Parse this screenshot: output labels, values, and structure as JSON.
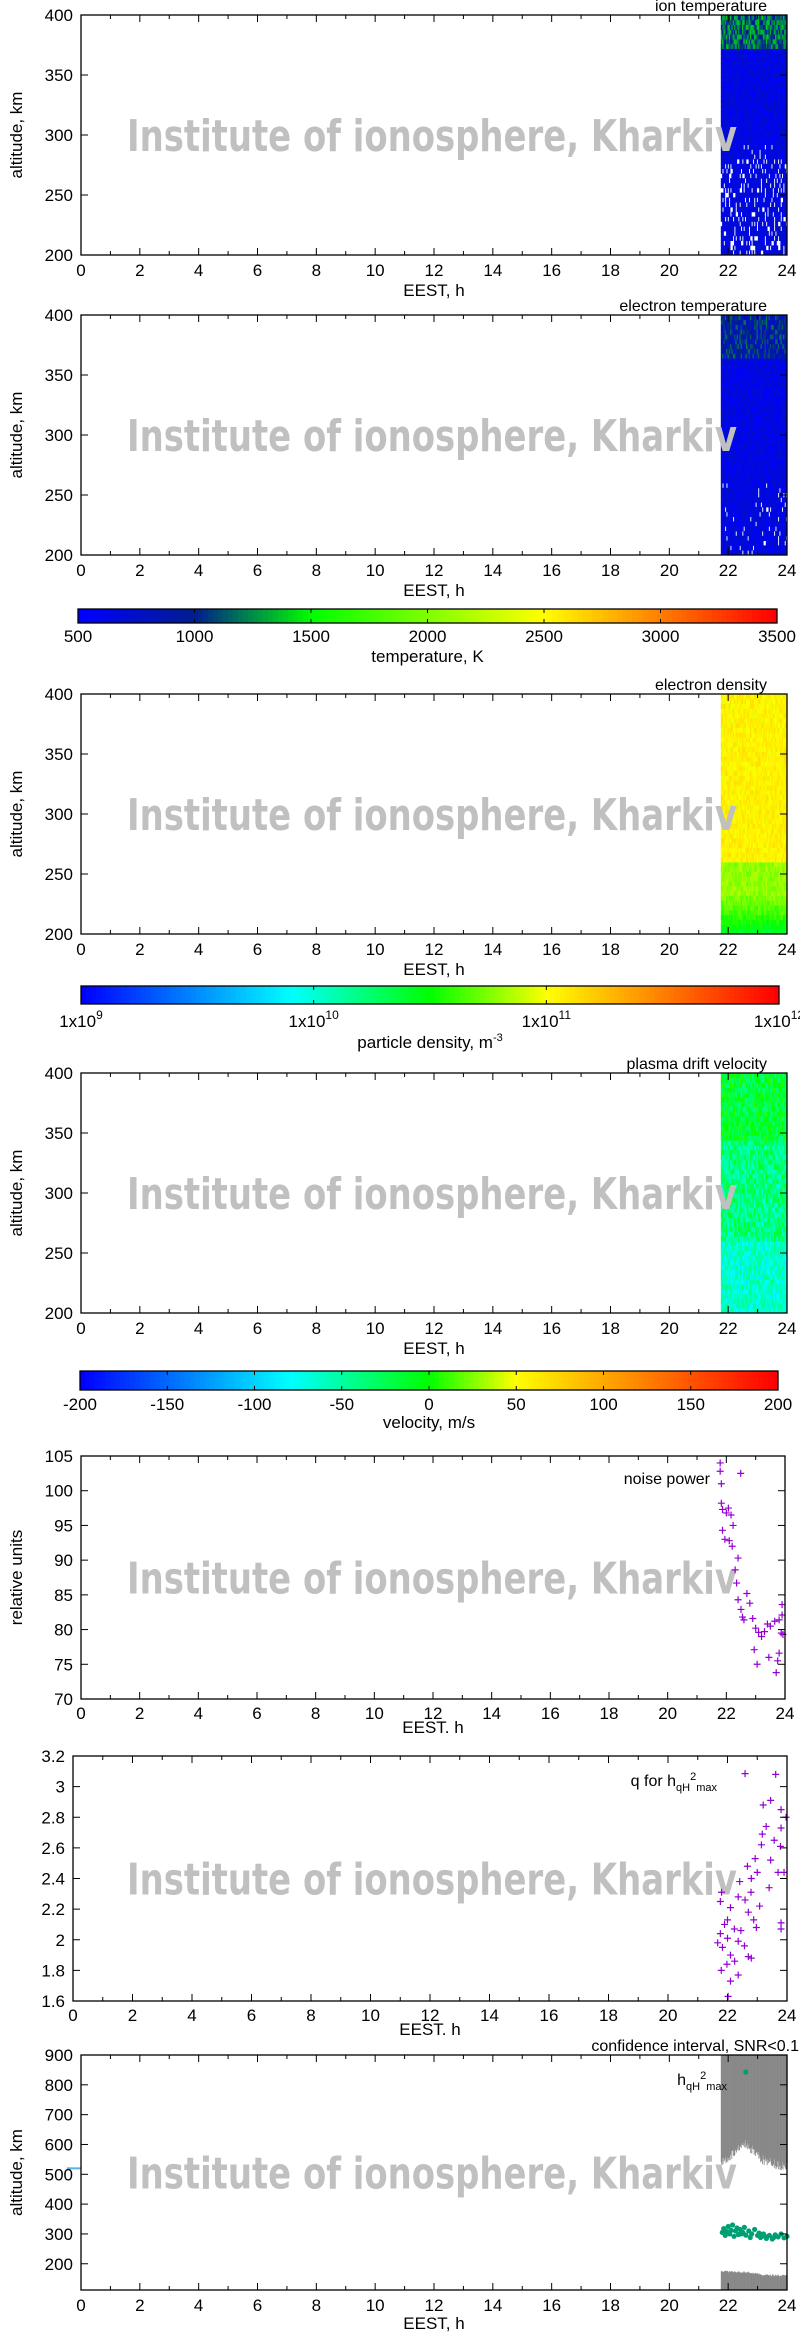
{
  "watermark": "Institute of ionosphere, Kharkiv",
  "chart_data": [
    {
      "type": "heatmap",
      "title": "ion temperature",
      "xlabel": "EEST, h",
      "ylabel": "altitude, km",
      "xlim": [
        0,
        24
      ],
      "ylim": [
        200,
        400
      ],
      "xticks": [
        "0",
        "2",
        "4",
        "6",
        "8",
        "10",
        "12",
        "14",
        "16",
        "18",
        "20",
        "22",
        "24"
      ],
      "yticks": [
        "200",
        "250",
        "300",
        "350",
        "400"
      ],
      "data_x_range": [
        21.75,
        24
      ],
      "data_y_range": [
        200,
        400
      ],
      "colorbar": 0,
      "value_range_estimate": [
        500,
        1300
      ],
      "notes_visible": "mostly blue (~500-800 K), greener near 400 km, gaps below 280 km"
    },
    {
      "type": "heatmap",
      "title": "electron temperature",
      "xlabel": "EEST, h",
      "ylabel": "altitude, km",
      "xlim": [
        0,
        24
      ],
      "ylim": [
        200,
        400
      ],
      "xticks": [
        "0",
        "2",
        "4",
        "6",
        "8",
        "10",
        "12",
        "14",
        "16",
        "18",
        "20",
        "22",
        "24"
      ],
      "yticks": [
        "200",
        "250",
        "300",
        "350",
        "400"
      ],
      "data_x_range": [
        21.75,
        24
      ],
      "data_y_range": [
        200,
        400
      ],
      "colorbar": 0,
      "value_range_estimate": [
        500,
        1200
      ]
    },
    {
      "type": "heatmap",
      "title": "electron density",
      "xlabel": "EEST, h",
      "ylabel": "altitude, km",
      "xlim": [
        0,
        24
      ],
      "ylim": [
        200,
        400
      ],
      "xticks": [
        "0",
        "2",
        "4",
        "6",
        "8",
        "10",
        "12",
        "14",
        "16",
        "18",
        "20",
        "22",
        "24"
      ],
      "yticks": [
        "200",
        "250",
        "300",
        "350",
        "400"
      ],
      "data_x_range": [
        21.75,
        24
      ],
      "data_y_range": [
        200,
        400
      ],
      "colorbar": 1,
      "value_range_estimate": [
        20000000000.0,
        150000000000.0
      ]
    },
    {
      "type": "heatmap",
      "title": "plasma drift velocity",
      "xlabel": "EEST, h",
      "ylabel": "altitude, km",
      "xlim": [
        0,
        24
      ],
      "ylim": [
        200,
        400
      ],
      "xticks": [
        "0",
        "2",
        "4",
        "6",
        "8",
        "10",
        "12",
        "14",
        "16",
        "18",
        "20",
        "22",
        "24"
      ],
      "yticks": [
        "200",
        "250",
        "300",
        "350",
        "400"
      ],
      "data_x_range": [
        21.75,
        24
      ],
      "data_y_range": [
        200,
        400
      ],
      "colorbar": 2,
      "value_range_estimate": [
        -120,
        20
      ]
    },
    {
      "type": "scatter",
      "legend": "noise power",
      "xlabel": "EEST. h",
      "ylabel": "relative units",
      "xlim": [
        0,
        24
      ],
      "ylim": [
        70,
        105
      ],
      "xticks": [
        "0",
        "2",
        "4",
        "6",
        "8",
        "10",
        "12",
        "14",
        "16",
        "18",
        "20",
        "22",
        "24"
      ],
      "yticks": [
        "70",
        "75",
        "80",
        "85",
        "90",
        "95",
        "100",
        "105"
      ],
      "color": "#9400d3",
      "points": [
        [
          21.79,
          104
        ],
        [
          21.79,
          102.8
        ],
        [
          22.49,
          102.5
        ],
        [
          21.83,
          101
        ],
        [
          21.83,
          98.2
        ],
        [
          21.87,
          97.3
        ],
        [
          22.07,
          97.5
        ],
        [
          22.16,
          96.5
        ],
        [
          21.87,
          94.3
        ],
        [
          21.95,
          93
        ],
        [
          22.2,
          92
        ],
        [
          22.23,
          95
        ],
        [
          22.4,
          90.3
        ],
        [
          22.3,
          88.6
        ],
        [
          22.35,
          86.7
        ],
        [
          22.4,
          84.3
        ],
        [
          22.5,
          82.9
        ],
        [
          22.6,
          81.4
        ],
        [
          22.7,
          85.2
        ],
        [
          22.8,
          83.8
        ],
        [
          22.9,
          81.6
        ],
        [
          23.0,
          80.2
        ],
        [
          23.2,
          79
        ],
        [
          23.3,
          79.7
        ],
        [
          23.5,
          80.5
        ],
        [
          23.65,
          81.2
        ],
        [
          23.8,
          81.4
        ],
        [
          23.9,
          83.6
        ],
        [
          23.9,
          82.1
        ],
        [
          23.93,
          79.3
        ],
        [
          22.95,
          77.1
        ],
        [
          23.05,
          75
        ],
        [
          23.45,
          76
        ],
        [
          23.7,
          73.8
        ],
        [
          23.8,
          76.6
        ],
        [
          23.75,
          75.5
        ],
        [
          23.87,
          79.5
        ],
        [
          22.0,
          96.8
        ],
        [
          22.1,
          92.8
        ],
        [
          22.55,
          81.8
        ],
        [
          23.1,
          79.6
        ],
        [
          23.4,
          80.8
        ]
      ]
    },
    {
      "type": "scatter",
      "legend": {
        "text": "q for h",
        "sub1": "qH",
        "sup": "2",
        "sub2": "max"
      },
      "xlabel": "EEST. h",
      "ylabel": "",
      "xlim": [
        0,
        24
      ],
      "ylim": [
        1.6,
        3.2
      ],
      "xticks": [
        "0",
        "2",
        "4",
        "6",
        "8",
        "10",
        "12",
        "14",
        "16",
        "18",
        "20",
        "22",
        "24"
      ],
      "yticks": [
        "1.6",
        "1.8",
        "2",
        "2.2",
        "2.4",
        "2.6",
        "2.8",
        "3",
        "3.2"
      ],
      "color": "#9400d3",
      "points": [
        [
          22.59,
          3.085
        ],
        [
          23.62,
          3.08
        ],
        [
          23.2,
          2.88
        ],
        [
          23.45,
          2.91
        ],
        [
          23.8,
          2.85
        ],
        [
          23.97,
          2.8
        ],
        [
          23.3,
          2.74
        ],
        [
          23.8,
          2.73
        ],
        [
          23.17,
          2.69
        ],
        [
          23.57,
          2.65
        ],
        [
          23.14,
          2.62
        ],
        [
          23.78,
          2.61
        ],
        [
          22.93,
          2.53
        ],
        [
          23.45,
          2.52
        ],
        [
          22.67,
          2.48
        ],
        [
          23.0,
          2.44
        ],
        [
          23.7,
          2.44
        ],
        [
          23.9,
          2.44
        ],
        [
          22.41,
          2.38
        ],
        [
          22.8,
          2.4
        ],
        [
          23.4,
          2.34
        ],
        [
          21.8,
          2.31
        ],
        [
          22.36,
          2.28
        ],
        [
          22.59,
          2.26
        ],
        [
          22.79,
          2.31
        ],
        [
          23.08,
          2.22
        ],
        [
          21.76,
          2.25
        ],
        [
          22.1,
          2.21
        ],
        [
          22.7,
          2.18
        ],
        [
          22.0,
          2.13
        ],
        [
          22.88,
          2.13
        ],
        [
          21.9,
          2.1
        ],
        [
          22.23,
          2.07
        ],
        [
          22.45,
          2.06
        ],
        [
          22.97,
          2.08
        ],
        [
          23.8,
          2.11
        ],
        [
          23.8,
          2.07
        ],
        [
          21.76,
          2.04
        ],
        [
          22.0,
          2.01
        ],
        [
          21.67,
          1.98
        ],
        [
          22.36,
          1.99
        ],
        [
          21.83,
          1.95
        ],
        [
          22.1,
          1.9
        ],
        [
          22.57,
          1.96
        ],
        [
          22.7,
          1.89
        ],
        [
          22.8,
          1.88
        ],
        [
          22.24,
          1.86
        ],
        [
          21.98,
          1.84
        ],
        [
          21.79,
          1.8
        ],
        [
          22.36,
          1.77
        ],
        [
          22.1,
          1.73
        ],
        [
          22.02,
          1.63
        ]
      ]
    },
    {
      "type": "scatter",
      "title": "confidence interval, SNR<0.1",
      "legend": {
        "text": "h",
        "sub1": "qH",
        "sup": "2",
        "sub2": "max"
      },
      "xlabel": "EEST, h",
      "ylabel": "altitude, km",
      "xlim": [
        0,
        24
      ],
      "ylim": [
        112,
        900
      ],
      "xticks": [
        "0",
        "2",
        "4",
        "6",
        "8",
        "10",
        "12",
        "14",
        "16",
        "18",
        "20",
        "22",
        "24"
      ],
      "yticks": [
        "200",
        "300",
        "400",
        "500",
        "600",
        "700",
        "800",
        "900"
      ],
      "color": "#009e73",
      "band_color": "#888888",
      "marker_color": "#56b4e9",
      "marker_at": [
        0,
        520
      ],
      "confidence_bands": [
        {
          "x": [
            21.75,
            24
          ],
          "lower": [
            [
              21.75,
              540
            ],
            [
              22.6,
              600
            ],
            [
              23.2,
              545
            ],
            [
              24,
              525
            ]
          ],
          "upper": 900
        },
        {
          "x": [
            21.75,
            24
          ],
          "lower": 112,
          "upper": [
            [
              21.75,
              175
            ],
            [
              22.6,
              172
            ],
            [
              23.2,
              162
            ],
            [
              24,
              160
            ]
          ]
        }
      ],
      "points": [
        [
          22.6,
          843
        ],
        [
          21.8,
          305
        ],
        [
          21.85,
          318
        ],
        [
          21.9,
          295
        ],
        [
          22.0,
          325
        ],
        [
          22.05,
          300
        ],
        [
          22.1,
          312
        ],
        [
          22.15,
          330
        ],
        [
          22.2,
          292
        ],
        [
          22.25,
          310
        ],
        [
          22.3,
          320
        ],
        [
          22.35,
          298
        ],
        [
          22.4,
          315
        ],
        [
          22.5,
          305
        ],
        [
          22.55,
          322
        ],
        [
          22.6,
          296
        ],
        [
          22.7,
          310
        ],
        [
          22.8,
          300
        ],
        [
          22.9,
          315
        ],
        [
          23.0,
          295
        ],
        [
          23.05,
          303
        ],
        [
          23.1,
          288
        ],
        [
          23.2,
          300
        ],
        [
          23.3,
          285
        ],
        [
          23.4,
          295
        ],
        [
          23.5,
          283
        ],
        [
          23.6,
          297
        ],
        [
          23.7,
          290
        ],
        [
          23.8,
          300
        ],
        [
          23.9,
          287
        ],
        [
          24.0,
          292
        ],
        [
          21.95,
          308
        ],
        [
          22.45,
          300
        ],
        [
          22.75,
          288
        ],
        [
          23.25,
          292
        ],
        [
          23.55,
          288
        ]
      ]
    }
  ],
  "colorbars": [
    {
      "label": "temperature, K",
      "ticks": [
        "500",
        "1000",
        "1500",
        "2000",
        "2500",
        "3000",
        "3500"
      ],
      "range": [
        500,
        3500
      ],
      "palette": [
        "#0000ff",
        "#001e8c",
        "#00ff00",
        "#ffff00",
        "#ff0000"
      ]
    },
    {
      "label": "particle density, m",
      "label_sup": "-3",
      "ticks": [
        {
          "base": "1x10",
          "exp": "9"
        },
        {
          "base": "1x10",
          "exp": "10"
        },
        {
          "base": "1x10",
          "exp": "11"
        },
        {
          "base": "1x10",
          "exp": "12"
        }
      ],
      "range": [
        1000000000.0,
        1000000000000.0
      ],
      "scale": "log",
      "palette": [
        "#0000ff",
        "#00ffff",
        "#00ff00",
        "#ffff00",
        "#ff0000"
      ]
    },
    {
      "label": "velocity, m/s",
      "ticks": [
        "-200",
        "-150",
        "-100",
        "-50",
        "0",
        "50",
        "100",
        "150",
        "200"
      ],
      "range": [
        -200,
        200
      ],
      "palette": [
        "#0000ff",
        "#00ffff",
        "#00ff00",
        "#ffff00",
        "#ff0000"
      ]
    }
  ]
}
